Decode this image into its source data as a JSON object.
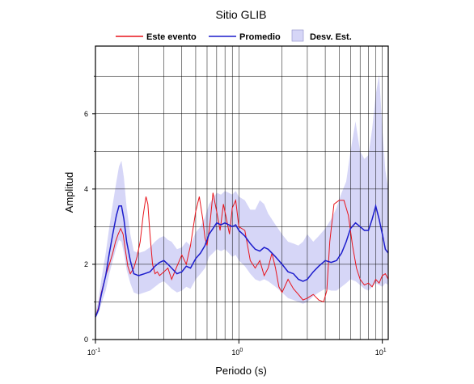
{
  "chart_data": {
    "type": "line",
    "title": "Sitio GLIB",
    "xlabel": "Periodo (s)",
    "ylabel": "Amplitud",
    "x_scale": "log",
    "xlim": [
      0.1,
      11
    ],
    "ylim": [
      0,
      7.8
    ],
    "grid": true,
    "legend_position": "top",
    "x_ticks": [
      {
        "base": "10",
        "exp": "-1"
      },
      {
        "base": "10",
        "exp": "0"
      },
      {
        "base": "10",
        "exp": "1"
      }
    ],
    "y_ticks": [
      "0",
      "2",
      "4",
      "6"
    ],
    "legend": [
      {
        "label": "Este evento",
        "kind": "line",
        "color": "#e8141c"
      },
      {
        "label": "Promedio",
        "kind": "line",
        "color": "#1c1ccc"
      },
      {
        "label": "Desv. Est.",
        "kind": "band",
        "color": "#d6d6f7"
      }
    ],
    "series": [
      {
        "name": "Promedio",
        "color": "#1c1ccc",
        "x": [
          0.1,
          0.105,
          0.11,
          0.118,
          0.125,
          0.132,
          0.14,
          0.146,
          0.152,
          0.158,
          0.165,
          0.175,
          0.185,
          0.2,
          0.22,
          0.24,
          0.26,
          0.28,
          0.3,
          0.32,
          0.34,
          0.37,
          0.4,
          0.43,
          0.46,
          0.5,
          0.54,
          0.58,
          0.62,
          0.66,
          0.7,
          0.75,
          0.8,
          0.85,
          0.9,
          0.95,
          1.0,
          1.1,
          1.2,
          1.3,
          1.4,
          1.5,
          1.6,
          1.8,
          2.0,
          2.2,
          2.4,
          2.6,
          2.8,
          3.0,
          3.3,
          3.6,
          4.0,
          4.4,
          4.8,
          5.2,
          5.6,
          6.0,
          6.5,
          7.0,
          7.5,
          8.0,
          8.5,
          9.0,
          9.5,
          10.0,
          10.5,
          11.0
        ],
        "y": [
          0.6,
          0.8,
          1.2,
          1.7,
          2.3,
          2.8,
          3.3,
          3.55,
          3.55,
          3.2,
          2.6,
          2.1,
          1.75,
          1.7,
          1.75,
          1.8,
          1.95,
          2.05,
          2.1,
          2.0,
          1.9,
          1.75,
          1.8,
          1.95,
          1.9,
          2.15,
          2.3,
          2.5,
          2.8,
          2.95,
          3.1,
          3.05,
          3.1,
          3.05,
          3.0,
          3.05,
          2.9,
          2.75,
          2.55,
          2.4,
          2.35,
          2.45,
          2.4,
          2.2,
          2.0,
          1.8,
          1.75,
          1.6,
          1.55,
          1.6,
          1.8,
          1.95,
          2.1,
          2.05,
          2.1,
          2.3,
          2.6,
          2.95,
          3.1,
          3.0,
          2.9,
          2.9,
          3.2,
          3.55,
          3.2,
          2.8,
          2.4,
          2.3
        ]
      },
      {
        "name": "Este evento",
        "color": "#e8141c",
        "x": [
          0.1,
          0.105,
          0.11,
          0.118,
          0.125,
          0.132,
          0.138,
          0.144,
          0.15,
          0.156,
          0.162,
          0.168,
          0.175,
          0.185,
          0.195,
          0.205,
          0.215,
          0.225,
          0.232,
          0.24,
          0.25,
          0.26,
          0.27,
          0.28,
          0.3,
          0.32,
          0.34,
          0.37,
          0.4,
          0.43,
          0.46,
          0.5,
          0.53,
          0.56,
          0.58,
          0.6,
          0.63,
          0.66,
          0.7,
          0.74,
          0.78,
          0.82,
          0.86,
          0.9,
          0.95,
          1.0,
          1.1,
          1.2,
          1.3,
          1.4,
          1.5,
          1.6,
          1.7,
          1.8,
          1.9,
          2.0,
          2.2,
          2.4,
          2.6,
          2.8,
          3.0,
          3.3,
          3.6,
          3.9,
          4.1,
          4.3,
          4.6,
          5.0,
          5.4,
          5.8,
          6.2,
          6.6,
          7.0,
          7.5,
          8.0,
          8.5,
          9.0,
          9.5,
          10.0,
          10.5,
          11.0
        ],
        "y": [
          0.6,
          0.85,
          1.25,
          1.7,
          2.0,
          2.3,
          2.6,
          2.8,
          2.95,
          2.8,
          2.35,
          1.95,
          1.75,
          1.9,
          2.2,
          2.6,
          3.3,
          3.8,
          3.6,
          2.8,
          2.0,
          1.75,
          1.8,
          1.7,
          1.8,
          1.9,
          1.6,
          1.95,
          2.25,
          2.0,
          2.5,
          3.4,
          3.8,
          3.2,
          2.7,
          2.5,
          3.1,
          3.9,
          3.4,
          2.9,
          3.6,
          3.2,
          2.8,
          3.5,
          3.7,
          3.0,
          2.9,
          2.1,
          1.9,
          2.1,
          1.7,
          1.9,
          2.3,
          1.9,
          1.4,
          1.25,
          1.6,
          1.35,
          1.2,
          1.05,
          1.1,
          1.2,
          1.05,
          1.0,
          1.3,
          2.6,
          3.6,
          3.7,
          3.7,
          3.3,
          2.5,
          1.9,
          1.6,
          1.45,
          1.5,
          1.4,
          1.6,
          1.5,
          1.7,
          1.75,
          1.6
        ]
      },
      {
        "name": "Desv. Est.",
        "color": "#d6d6f7",
        "x": [
          0.1,
          0.105,
          0.11,
          0.118,
          0.125,
          0.132,
          0.14,
          0.146,
          0.152,
          0.158,
          0.165,
          0.175,
          0.185,
          0.2,
          0.22,
          0.24,
          0.26,
          0.28,
          0.3,
          0.32,
          0.34,
          0.37,
          0.4,
          0.43,
          0.46,
          0.5,
          0.54,
          0.58,
          0.62,
          0.66,
          0.7,
          0.75,
          0.8,
          0.85,
          0.9,
          0.95,
          1.0,
          1.1,
          1.2,
          1.3,
          1.4,
          1.5,
          1.6,
          1.8,
          2.0,
          2.2,
          2.4,
          2.6,
          2.8,
          3.0,
          3.3,
          3.6,
          4.0,
          4.4,
          4.8,
          5.2,
          5.6,
          6.0,
          6.5,
          7.0,
          7.5,
          8.0,
          8.5,
          9.0,
          9.5,
          10.0,
          10.5,
          11.0
        ],
        "y_low": [
          0.55,
          0.7,
          0.95,
          1.3,
          1.75,
          2.1,
          2.45,
          2.65,
          2.6,
          2.3,
          1.85,
          1.5,
          1.25,
          1.2,
          1.25,
          1.3,
          1.4,
          1.5,
          1.55,
          1.45,
          1.35,
          1.25,
          1.3,
          1.4,
          1.35,
          1.6,
          1.75,
          1.9,
          2.2,
          2.3,
          2.4,
          2.35,
          2.4,
          2.3,
          2.2,
          2.25,
          2.1,
          1.95,
          1.75,
          1.6,
          1.55,
          1.6,
          1.55,
          1.4,
          1.25,
          1.1,
          1.05,
          1.0,
          0.95,
          1.0,
          1.15,
          1.25,
          1.35,
          1.3,
          1.3,
          1.4,
          1.5,
          1.6,
          1.55,
          1.45,
          1.35,
          1.3,
          1.4,
          1.5,
          1.45,
          1.4,
          1.5,
          1.45
        ],
        "y_high": [
          0.7,
          1.05,
          1.6,
          2.3,
          3.0,
          3.6,
          4.2,
          4.6,
          4.75,
          4.3,
          3.5,
          2.8,
          2.35,
          2.3,
          2.35,
          2.45,
          2.6,
          2.7,
          2.75,
          2.65,
          2.6,
          2.4,
          2.45,
          2.6,
          2.5,
          2.85,
          3.0,
          3.25,
          3.6,
          3.75,
          3.9,
          3.85,
          3.95,
          3.9,
          3.85,
          3.95,
          3.8,
          3.7,
          3.45,
          3.45,
          3.7,
          3.6,
          3.35,
          3.05,
          2.8,
          2.6,
          2.55,
          2.5,
          2.6,
          2.8,
          2.6,
          2.75,
          2.95,
          3.2,
          3.5,
          3.9,
          4.2,
          5.0,
          5.8,
          5.0,
          4.8,
          4.9,
          5.6,
          6.5,
          7.05,
          5.6,
          4.5,
          4.0
        ]
      }
    ]
  }
}
